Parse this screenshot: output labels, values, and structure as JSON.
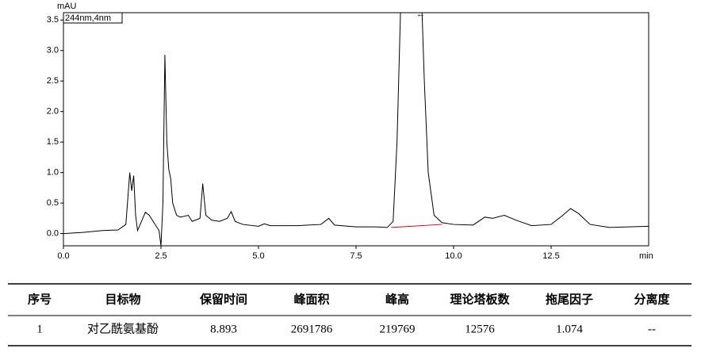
{
  "chart_data": {
    "type": "line",
    "ylabel": "mAU",
    "xlabel": "min",
    "annotation": "244nm,4nm",
    "xlim": [
      0,
      15
    ],
    "ylim": [
      -0.2,
      3.62
    ],
    "xticks": [
      {
        "value": 0,
        "label": "0.0"
      },
      2.5,
      {
        "value": 5,
        "label": "5.0"
      },
      7.5,
      {
        "value": 10,
        "label": "10.0"
      },
      12.5
    ],
    "yticks": [
      {
        "value": 0,
        "label": "0.0"
      },
      0.5,
      {
        "value": 1,
        "label": "1.0"
      },
      1.5,
      {
        "value": 2,
        "label": "2.0"
      },
      2.5,
      {
        "value": 3,
        "label": "3.0"
      },
      3.5
    ],
    "series": [
      {
        "color": "#000000",
        "x": [
          0,
          0.5,
          1.0,
          1.4,
          1.6,
          1.7,
          1.75,
          1.8,
          1.85,
          1.9,
          2.0,
          2.1,
          2.2,
          2.3,
          2.45,
          2.5,
          2.55,
          2.6,
          2.65,
          2.7,
          2.75,
          2.8,
          2.9,
          3.0,
          3.2,
          3.3,
          3.5,
          3.57,
          3.65,
          3.8,
          4.0,
          4.2,
          4.3,
          4.4,
          4.6,
          5.0,
          5.15,
          5.3,
          6.0,
          6.6,
          6.8,
          6.95,
          7.5,
          8.0,
          8.3,
          8.45,
          8.55,
          8.64,
          9.19,
          9.25,
          9.35,
          9.5,
          9.7,
          10.0,
          10.5,
          10.8,
          11.0,
          11.3,
          11.6,
          12.0,
          12.5,
          12.8,
          13.0,
          13.2,
          13.5,
          14.0,
          15.0
        ],
        "values": [
          0.0,
          0.02,
          0.05,
          0.06,
          0.15,
          1.0,
          0.7,
          0.95,
          0.3,
          0.05,
          0.2,
          0.35,
          0.3,
          0.2,
          0.05,
          -0.2,
          0.5,
          2.93,
          1.5,
          1.05,
          0.9,
          0.5,
          0.3,
          0.27,
          0.3,
          0.2,
          0.25,
          0.82,
          0.3,
          0.22,
          0.2,
          0.25,
          0.36,
          0.2,
          0.15,
          0.12,
          0.16,
          0.13,
          0.13,
          0.15,
          0.25,
          0.14,
          0.11,
          0.11,
          0.1,
          0.2,
          1.5,
          3.65,
          3.65,
          2.5,
          1.0,
          0.3,
          0.18,
          0.15,
          0.14,
          0.27,
          0.25,
          0.3,
          0.22,
          0.13,
          0.15,
          0.3,
          0.41,
          0.33,
          0.15,
          0.1,
          0.12
        ]
      },
      {
        "color": "#e00000",
        "x": [
          8.4,
          9.7
        ],
        "values": [
          0.1,
          0.15
        ]
      }
    ]
  },
  "table": {
    "header": [
      "序号",
      "目标物",
      "保留时间",
      "峰面积",
      "峰高",
      "理论塔板数",
      "拖尾因子",
      "分离度"
    ],
    "rows": [
      [
        "1",
        "对乙酰氨基酚",
        "8.893",
        "2691786",
        "219769",
        "12576",
        "1.074",
        "--"
      ]
    ]
  }
}
